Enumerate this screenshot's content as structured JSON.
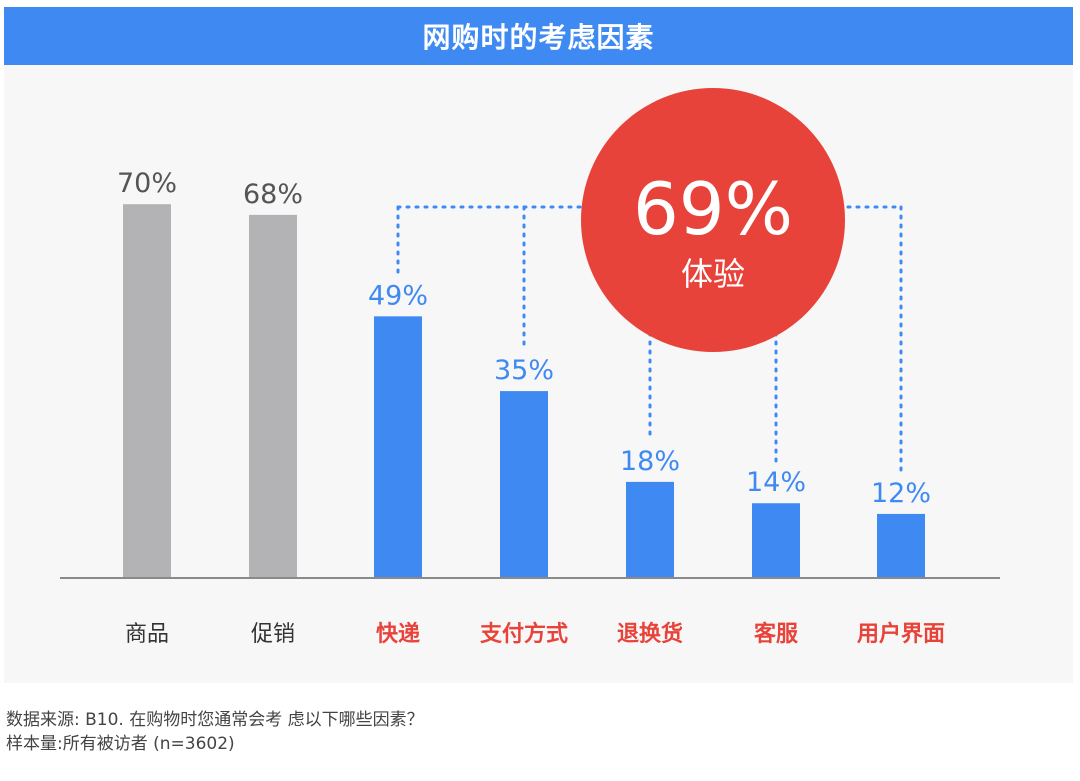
{
  "header": {
    "title": "网购时的考虑因素"
  },
  "callout": {
    "value_label": "69%",
    "name": "体验"
  },
  "footer": {
    "source": "数据来源: B10. 在购物时您通常会考 虑以下哪些因素？",
    "sample": "样本量:所有被访者 (n=3602)"
  },
  "colors": {
    "header": "#3f8af2",
    "grey_bar": "#b3b3b5",
    "blue_bar": "#3f8af2",
    "grey_label": "#555555",
    "blue_label": "#3f8af2",
    "red_category": "#e8433a",
    "callout_circle": "#e8433a",
    "dotted_line": "#3f8af2"
  },
  "chart_data": {
    "type": "bar",
    "categories": [
      "商品",
      "促销",
      "快递",
      "支付方式",
      "退换货",
      "客服",
      "用户界面"
    ],
    "values": [
      70,
      68,
      49,
      35,
      18,
      14,
      12
    ],
    "value_labels": [
      "70%",
      "68%",
      "49%",
      "35%",
      "18%",
      "14%",
      "12%"
    ],
    "groups": [
      "grey",
      "grey",
      "blue",
      "blue",
      "blue",
      "blue",
      "blue"
    ],
    "ylim": [
      0,
      70
    ],
    "grid": false,
    "bracket_group": "体验",
    "bracket_value": 69
  }
}
